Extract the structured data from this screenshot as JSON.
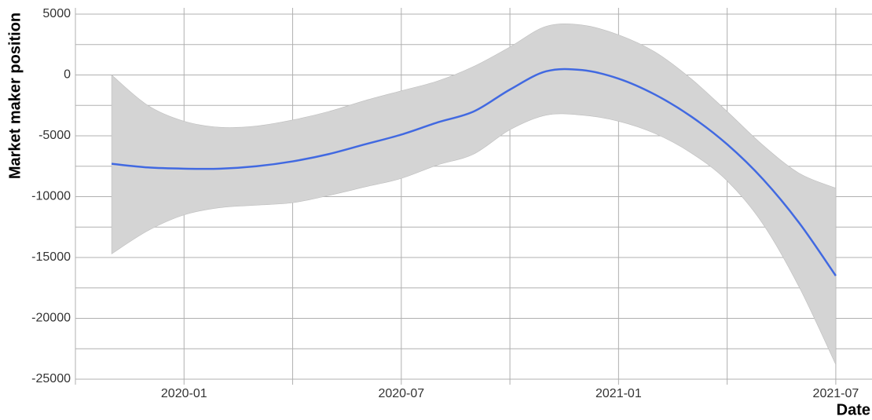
{
  "chart_data": {
    "type": "line",
    "xlabel": "Date",
    "ylabel": "Market maker position",
    "x": [
      "2019-11",
      "2019-12",
      "2020-01",
      "2020-02",
      "2020-03",
      "2020-04",
      "2020-05",
      "2020-06",
      "2020-07",
      "2020-08",
      "2020-09",
      "2020-10",
      "2020-11",
      "2020-12",
      "2021-01",
      "2021-02",
      "2021-03",
      "2021-04",
      "2021-05",
      "2021-06",
      "2021-07"
    ],
    "series": [
      {
        "color": "#4169e1",
        "values": [
          -7300,
          -7600,
          -7700,
          -7700,
          -7500,
          -7100,
          -6500,
          -5700,
          -4900,
          -3900,
          -3000,
          -1200,
          300,
          400,
          -300,
          -1600,
          -3400,
          -5700,
          -8600,
          -12200,
          -16500
        ],
        "upper": [
          0,
          -2500,
          -3800,
          -4300,
          -4200,
          -3700,
          -3000,
          -2100,
          -1300,
          -500,
          700,
          2300,
          4000,
          4100,
          3300,
          1900,
          -300,
          -3000,
          -5800,
          -8100,
          -9300
        ],
        "lower": [
          -14700,
          -12800,
          -11500,
          -10900,
          -10700,
          -10500,
          -9900,
          -9200,
          -8500,
          -7400,
          -6500,
          -4500,
          -3300,
          -3300,
          -3800,
          -4800,
          -6400,
          -8700,
          -12300,
          -17500,
          -23800
        ],
        "band_color": "#d4d4d4"
      }
    ],
    "xlim": [
      "2019-10",
      "2021-08"
    ],
    "xticks": [
      "2020-01",
      "2020-07",
      "2021-01",
      "2021-07"
    ],
    "xticks_minor": [
      "2020-04",
      "2020-10",
      "2021-04"
    ],
    "ylim": [
      -25000,
      5000
    ],
    "yticks": [
      -25000,
      -20000,
      -15000,
      -10000,
      -5000,
      0,
      5000
    ],
    "yticks_minor": [
      -22500,
      -17500,
      -12500,
      -7500,
      -2500,
      2500
    ],
    "grid": true
  }
}
